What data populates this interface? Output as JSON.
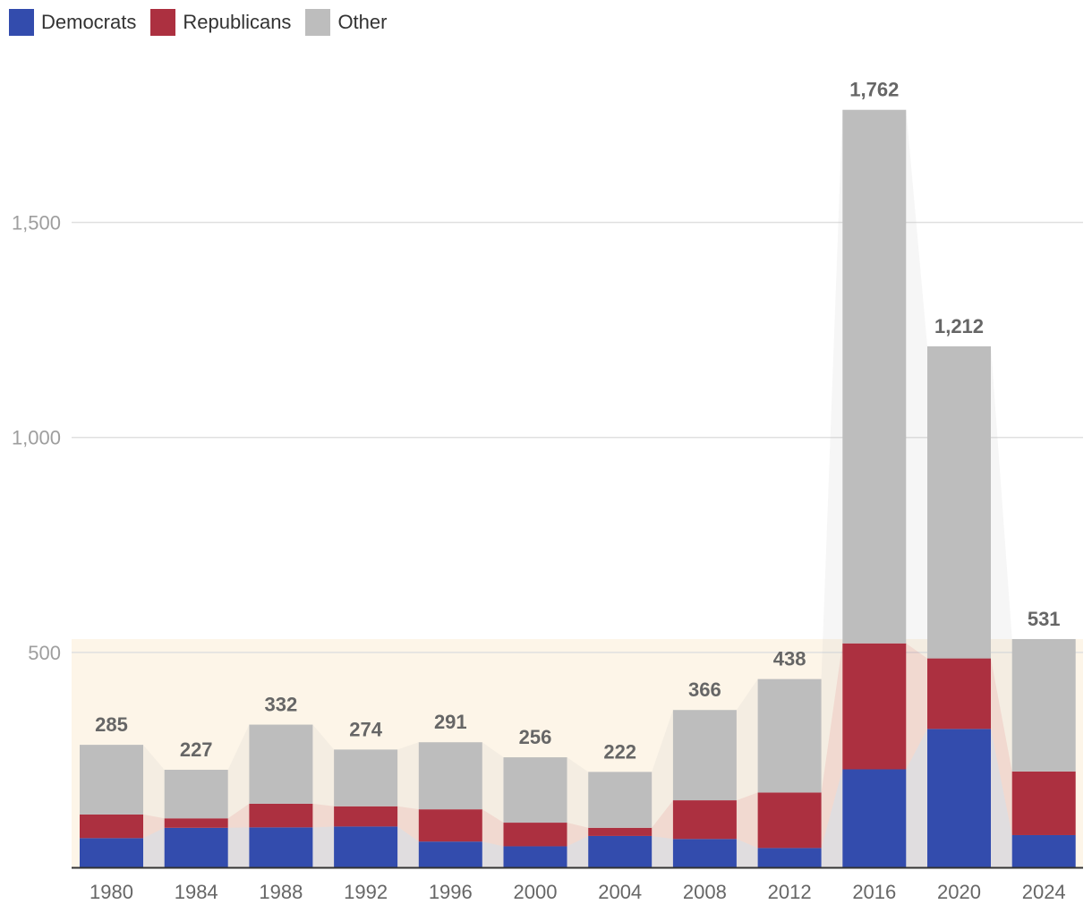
{
  "chart_data": {
    "type": "bar",
    "stacked": true,
    "title": "",
    "xlabel": "",
    "ylabel": "",
    "ylim": [
      0,
      1800
    ],
    "y_ticks": [
      500,
      1000,
      1500
    ],
    "y_tick_labels": [
      "500",
      "1,000",
      "1,500"
    ],
    "categories": [
      "1980",
      "1984",
      "1988",
      "1992",
      "1996",
      "2000",
      "2004",
      "2008",
      "2012",
      "2016",
      "2020",
      "2024"
    ],
    "series": [
      {
        "name": "Democrats",
        "color": "#334cad",
        "values": [
          68,
          92,
          93,
          95,
          60,
          49,
          73,
          66,
          45,
          228,
          322,
          75
        ]
      },
      {
        "name": "Republicans",
        "color": "#ac3040",
        "values": [
          55,
          22,
          55,
          47,
          75,
          55,
          19,
          90,
          129,
          293,
          164,
          148
        ]
      },
      {
        "name": "Other",
        "color": "#bdbdbd",
        "values": [
          162,
          113,
          184,
          132,
          156,
          152,
          130,
          210,
          264,
          1241,
          726,
          308
        ]
      }
    ],
    "totals": [
      285,
      227,
      332,
      274,
      291,
      256,
      222,
      366,
      438,
      1762,
      1212,
      531
    ],
    "total_labels": [
      "285",
      "227",
      "332",
      "274",
      "291",
      "256",
      "222",
      "366",
      "438",
      "1,762",
      "1,212",
      "531"
    ],
    "highlight_band_max": 531,
    "highlight_color": "#fdf5e8",
    "legend_position": "top-left"
  }
}
